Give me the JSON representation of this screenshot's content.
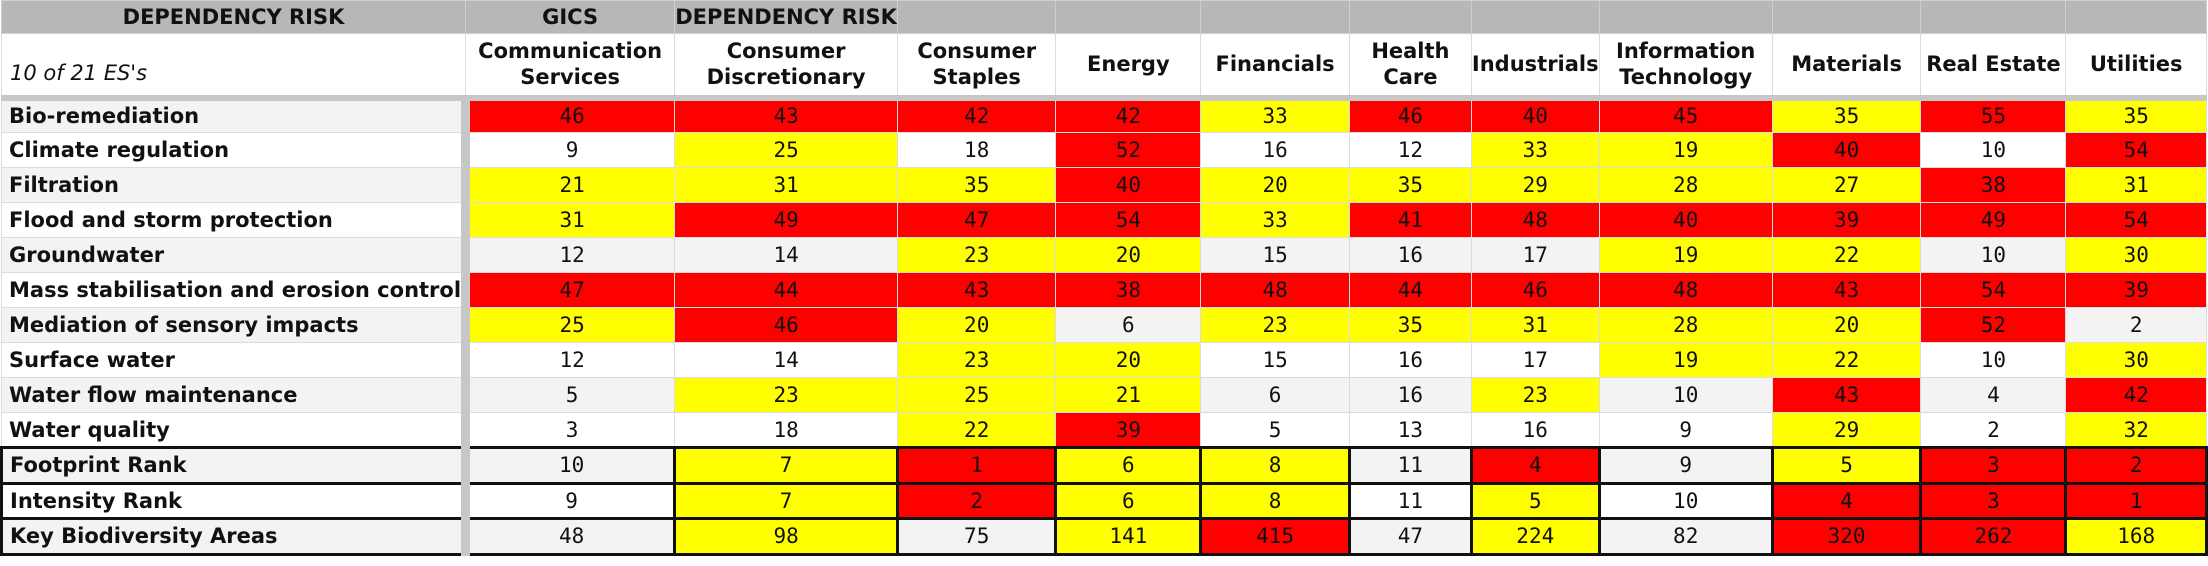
{
  "colors": {
    "red": "#ff0000",
    "yellow": "#ffff00",
    "white": "#ffffff",
    "light": "#f3f3f3"
  },
  "top_bar": {
    "left": "DEPENDENCY RISK",
    "gics": "GICS",
    "dep": "DEPENDENCY RISK"
  },
  "corner_label": "10 of 21 ES's",
  "sectors": [
    "Communication Services",
    "Consumer Discretionary",
    "Consumer Staples",
    "Energy",
    "Financials",
    "Health Care",
    "Industrials",
    "Information Technology",
    "Materials",
    "Real Estate",
    "Utilities"
  ],
  "es_rows": [
    {
      "label": "Bio-remediation",
      "cells": [
        [
          "46",
          "r"
        ],
        [
          "43",
          "r"
        ],
        [
          "42",
          "r"
        ],
        [
          "42",
          "r"
        ],
        [
          "33",
          "y"
        ],
        [
          "46",
          "r"
        ],
        [
          "40",
          "r"
        ],
        [
          "45",
          "r"
        ],
        [
          "35",
          "y"
        ],
        [
          "55",
          "r"
        ],
        [
          "35",
          "y"
        ]
      ]
    },
    {
      "label": "Climate regulation",
      "cells": [
        [
          "9",
          "w"
        ],
        [
          "25",
          "y"
        ],
        [
          "18",
          "w"
        ],
        [
          "52",
          "r"
        ],
        [
          "16",
          "w"
        ],
        [
          "12",
          "w"
        ],
        [
          "33",
          "y"
        ],
        [
          "19",
          "y"
        ],
        [
          "40",
          "r"
        ],
        [
          "10",
          "w"
        ],
        [
          "54",
          "r"
        ]
      ]
    },
    {
      "label": "Filtration",
      "cells": [
        [
          "21",
          "y"
        ],
        [
          "31",
          "y"
        ],
        [
          "35",
          "y"
        ],
        [
          "40",
          "r"
        ],
        [
          "20",
          "y"
        ],
        [
          "35",
          "y"
        ],
        [
          "29",
          "y"
        ],
        [
          "28",
          "y"
        ],
        [
          "27",
          "y"
        ],
        [
          "38",
          "r"
        ],
        [
          "31",
          "y"
        ]
      ]
    },
    {
      "label": "Flood and storm protection",
      "cells": [
        [
          "31",
          "y"
        ],
        [
          "49",
          "r"
        ],
        [
          "47",
          "r"
        ],
        [
          "54",
          "r"
        ],
        [
          "33",
          "y"
        ],
        [
          "41",
          "r"
        ],
        [
          "48",
          "r"
        ],
        [
          "40",
          "r"
        ],
        [
          "39",
          "r"
        ],
        [
          "49",
          "r"
        ],
        [
          "54",
          "r"
        ]
      ]
    },
    {
      "label": "Groundwater",
      "cells": [
        [
          "12",
          "l"
        ],
        [
          "14",
          "l"
        ],
        [
          "23",
          "y"
        ],
        [
          "20",
          "y"
        ],
        [
          "15",
          "l"
        ],
        [
          "16",
          "l"
        ],
        [
          "17",
          "l"
        ],
        [
          "19",
          "y"
        ],
        [
          "22",
          "y"
        ],
        [
          "10",
          "l"
        ],
        [
          "30",
          "y"
        ]
      ]
    },
    {
      "label": "Mass stabilisation and erosion control",
      "cells": [
        [
          "47",
          "r"
        ],
        [
          "44",
          "r"
        ],
        [
          "43",
          "r"
        ],
        [
          "38",
          "r"
        ],
        [
          "48",
          "r"
        ],
        [
          "44",
          "r"
        ],
        [
          "46",
          "r"
        ],
        [
          "48",
          "r"
        ],
        [
          "43",
          "r"
        ],
        [
          "54",
          "r"
        ],
        [
          "39",
          "r"
        ]
      ]
    },
    {
      "label": "Mediation of sensory impacts",
      "cells": [
        [
          "25",
          "y"
        ],
        [
          "46",
          "r"
        ],
        [
          "20",
          "y"
        ],
        [
          "6",
          "l"
        ],
        [
          "23",
          "y"
        ],
        [
          "35",
          "y"
        ],
        [
          "31",
          "y"
        ],
        [
          "28",
          "y"
        ],
        [
          "20",
          "y"
        ],
        [
          "52",
          "r"
        ],
        [
          "2",
          "l"
        ]
      ]
    },
    {
      "label": "Surface water",
      "cells": [
        [
          "12",
          "w"
        ],
        [
          "14",
          "w"
        ],
        [
          "23",
          "y"
        ],
        [
          "20",
          "y"
        ],
        [
          "15",
          "w"
        ],
        [
          "16",
          "w"
        ],
        [
          "17",
          "w"
        ],
        [
          "19",
          "y"
        ],
        [
          "22",
          "y"
        ],
        [
          "10",
          "w"
        ],
        [
          "30",
          "y"
        ]
      ]
    },
    {
      "label": "Water flow maintenance",
      "cells": [
        [
          "5",
          "l"
        ],
        [
          "23",
          "y"
        ],
        [
          "25",
          "y"
        ],
        [
          "21",
          "y"
        ],
        [
          "6",
          "l"
        ],
        [
          "16",
          "l"
        ],
        [
          "23",
          "y"
        ],
        [
          "10",
          "l"
        ],
        [
          "43",
          "r"
        ],
        [
          "4",
          "l"
        ],
        [
          "42",
          "r"
        ]
      ]
    },
    {
      "label": "Water quality",
      "cells": [
        [
          "3",
          "w"
        ],
        [
          "18",
          "w"
        ],
        [
          "22",
          "y"
        ],
        [
          "39",
          "r"
        ],
        [
          "5",
          "w"
        ],
        [
          "13",
          "w"
        ],
        [
          "16",
          "w"
        ],
        [
          "9",
          "w"
        ],
        [
          "29",
          "y"
        ],
        [
          "2",
          "w"
        ],
        [
          "32",
          "y"
        ]
      ]
    }
  ],
  "rank_rows": [
    {
      "label": "Footprint Rank",
      "cells": [
        [
          "10",
          "l"
        ],
        [
          "7",
          "y"
        ],
        [
          "1",
          "r"
        ],
        [
          "6",
          "y"
        ],
        [
          "8",
          "y"
        ],
        [
          "11",
          "l"
        ],
        [
          "4",
          "r"
        ],
        [
          "9",
          "l"
        ],
        [
          "5",
          "y"
        ],
        [
          "3",
          "r"
        ],
        [
          "2",
          "r"
        ]
      ]
    },
    {
      "label": "Intensity Rank",
      "cells": [
        [
          "9",
          "w"
        ],
        [
          "7",
          "y"
        ],
        [
          "2",
          "r"
        ],
        [
          "6",
          "y"
        ],
        [
          "8",
          "y"
        ],
        [
          "11",
          "w"
        ],
        [
          "5",
          "y"
        ],
        [
          "10",
          "w"
        ],
        [
          "4",
          "r"
        ],
        [
          "3",
          "r"
        ],
        [
          "1",
          "r"
        ]
      ]
    },
    {
      "label": "Key Biodiversity Areas",
      "cells": [
        [
          "48",
          "l"
        ],
        [
          "98",
          "y"
        ],
        [
          "75",
          "l"
        ],
        [
          "141",
          "y"
        ],
        [
          "415",
          "r"
        ],
        [
          "47",
          "l"
        ],
        [
          "224",
          "y"
        ],
        [
          "82",
          "l"
        ],
        [
          "320",
          "r"
        ],
        [
          "262",
          "r"
        ],
        [
          "168",
          "y"
        ]
      ]
    }
  ]
}
